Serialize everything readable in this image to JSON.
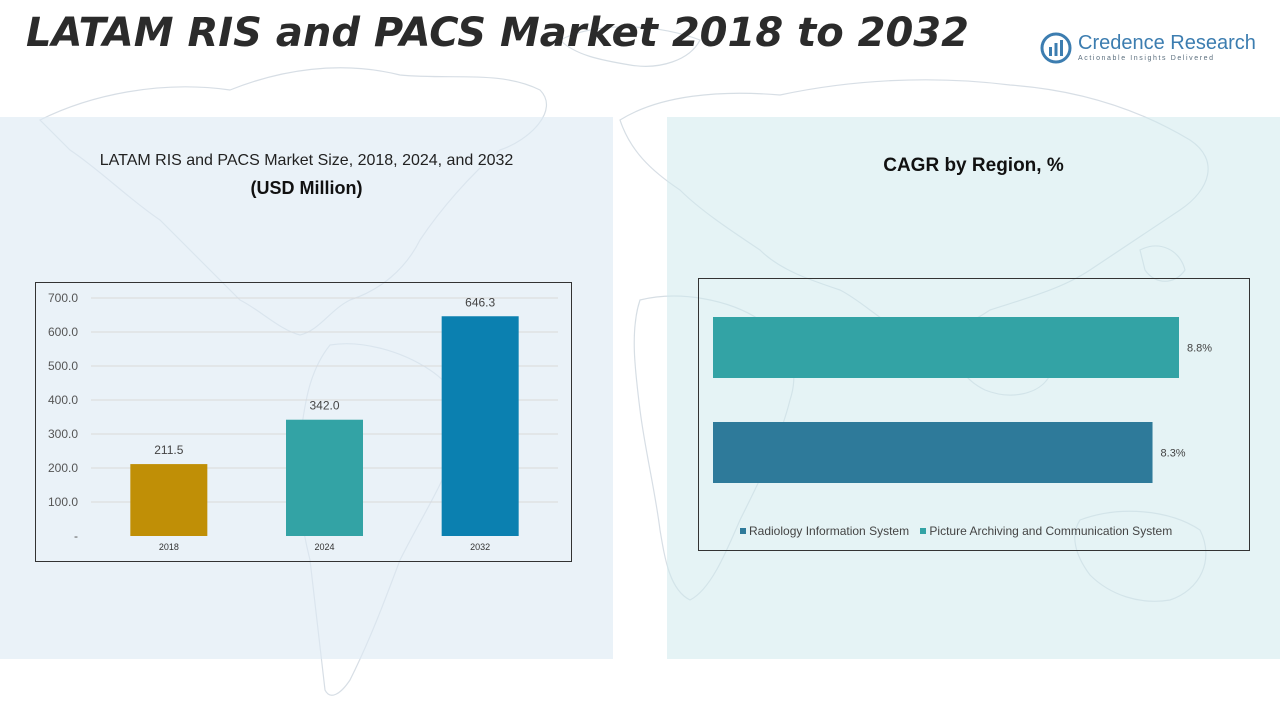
{
  "header": {
    "title": "LATAM RIS and PACS Market 2018 to 2032",
    "logo_name_a": "Credence",
    "logo_name_b": " Research",
    "logo_tagline": "Actionable Insights Delivered"
  },
  "left_panel": {
    "title": "LATAM RIS and PACS Market Size, 2018, 2024, and 2032",
    "subtitle": "(USD Million)"
  },
  "right_panel": {
    "title": "CAGR by Region, %",
    "legend": [
      {
        "label": "Radiology Information System",
        "color": "#2e7a9a"
      },
      {
        "label": "Picture Archiving and Communication System",
        "color": "#33a3a5"
      }
    ]
  },
  "colors": {
    "bar_2018": "#c08f06",
    "bar_2024": "#33a3a5",
    "bar_2032": "#0b80b0",
    "ris": "#2e7a9a",
    "pacs": "#33a3a5"
  },
  "chart_data": [
    {
      "type": "bar",
      "categories": [
        "2018",
        "2024",
        "2032"
      ],
      "values": [
        211.5,
        342.0,
        646.3
      ],
      "value_labels": [
        "211.5",
        "342.0",
        "646.3"
      ],
      "ylim": [
        0,
        700
      ],
      "y_ticks": [
        "-",
        "100.0",
        "200.0",
        "300.0",
        "400.0",
        "500.0",
        "600.0",
        "700.0"
      ],
      "grid": true
    },
    {
      "type": "bar",
      "orientation": "horizontal",
      "categories": [
        "Picture Archiving and Communication System",
        "Radiology Information System"
      ],
      "values": [
        8.8,
        8.3
      ],
      "value_labels": [
        "8.8%",
        "8.3%"
      ],
      "legend_position": "bottom"
    }
  ]
}
